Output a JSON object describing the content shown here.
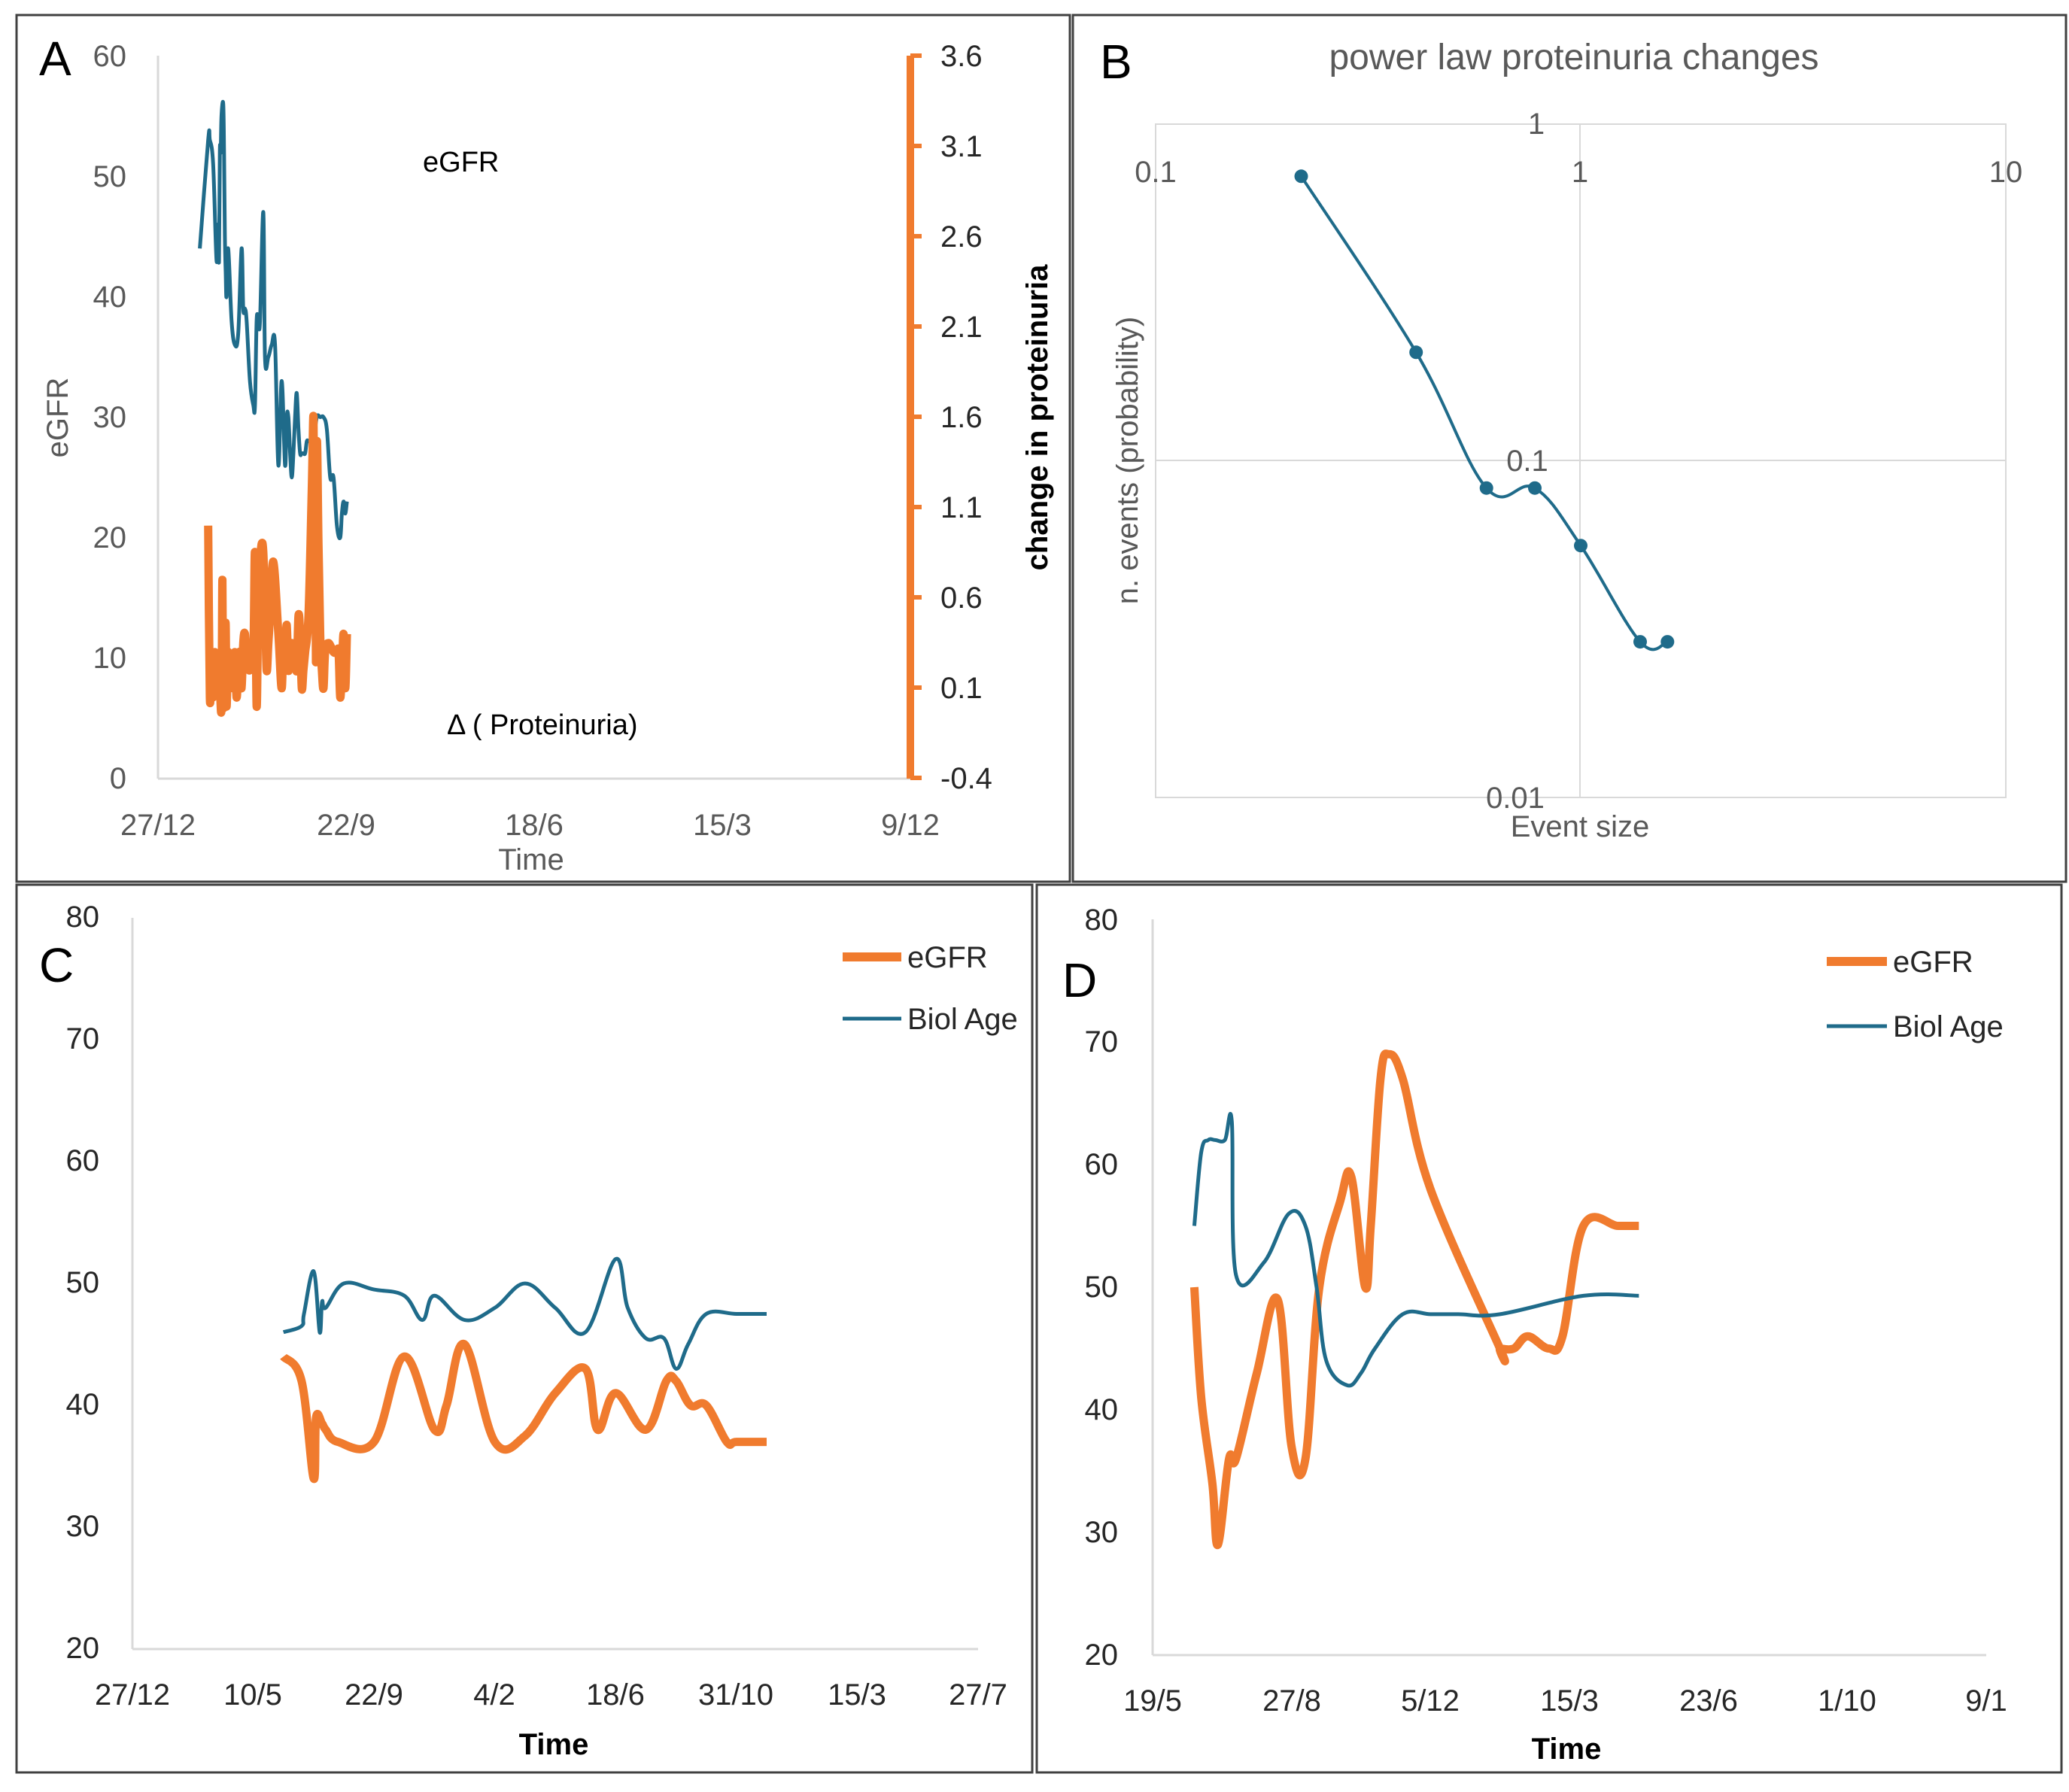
{
  "colors": {
    "blue": "#1f6b8a",
    "orange": "#f07b2e",
    "grid": "#d9d9d9",
    "text": "#595959"
  },
  "chart_data": [
    {
      "panel": "A",
      "type": "line",
      "title": "",
      "xlabel": "Time",
      "ylabel": "eGFR",
      "y2label": "change in proteinuria",
      "xticks": [
        "27/12",
        "22/9",
        "18/6",
        "15/3",
        "9/12"
      ],
      "ylim": [
        0,
        60
      ],
      "yticks": [
        0,
        10,
        20,
        30,
        40,
        50,
        60
      ],
      "y2lim": [
        -0.4,
        3.6
      ],
      "y2ticks": [
        "3.6",
        "3.1",
        "2.6",
        "2.1",
        "1.6",
        "1.1",
        "0.6",
        "0.1",
        "-0.4"
      ],
      "annotations": [
        "eGFR",
        "Δ ( Proteinuria)"
      ],
      "series": [
        {
          "name": "eGFR",
          "axis": "left",
          "x": [
            0.25,
            0.3,
            0.31,
            0.33,
            0.35,
            0.36,
            0.365,
            0.37,
            0.375,
            0.38,
            0.39,
            0.395,
            0.4,
            0.405,
            0.41,
            0.42,
            0.44,
            0.46,
            0.48,
            0.5,
            0.51,
            0.52,
            0.53,
            0.55,
            0.57,
            0.58,
            0.59,
            0.6,
            0.61,
            0.63,
            0.64,
            0.66,
            0.68,
            0.7,
            0.72,
            0.74,
            0.76,
            0.77,
            0.78,
            0.79,
            0.8,
            0.81,
            0.82,
            0.83,
            0.84,
            0.85,
            0.86,
            0.87,
            0.88,
            0.89,
            0.9,
            0.91,
            0.92,
            0.93,
            0.95,
            0.97,
            0.99,
            1.01,
            1.03,
            1.05,
            1.07,
            1.09,
            1.1,
            1.11,
            1.12,
            1.13
          ],
          "y": [
            44,
            53,
            53,
            51,
            43,
            46,
            43,
            52,
            52,
            55,
            56,
            52,
            45,
            42,
            40,
            44,
            38,
            36,
            37,
            44,
            39,
            39,
            38,
            33,
            31,
            31,
            38,
            38,
            38,
            47,
            35,
            35,
            36,
            36,
            26,
            33,
            26,
            30,
            30,
            27,
            25,
            27,
            30,
            32,
            29,
            27,
            27,
            27,
            27,
            28,
            28,
            28,
            28,
            28,
            30,
            30,
            30,
            29,
            25,
            25,
            21,
            20,
            22,
            23,
            22,
            23
          ]
        },
        {
          "name": "Δ ( Proteinuria)",
          "axis": "right",
          "x": [
            0.3,
            0.31,
            0.32,
            0.33,
            0.34,
            0.35,
            0.36,
            0.37,
            0.38,
            0.385,
            0.39,
            0.4,
            0.405,
            0.41,
            0.42,
            0.43,
            0.44,
            0.45,
            0.46,
            0.47,
            0.48,
            0.49,
            0.5,
            0.51,
            0.52,
            0.53,
            0.55,
            0.57,
            0.58,
            0.59,
            0.6,
            0.61,
            0.62,
            0.63,
            0.64,
            0.65,
            0.66,
            0.67,
            0.69,
            0.72,
            0.74,
            0.75,
            0.76,
            0.77,
            0.78,
            0.79,
            0.8,
            0.81,
            0.82,
            0.83,
            0.84,
            0.85,
            0.86,
            0.87,
            0.88,
            0.9,
            0.92,
            0.93,
            0.935,
            0.94,
            0.945,
            0.95,
            0.96,
            0.97,
            0.98,
            0.99,
            1.0,
            1.02,
            1.05,
            1.07,
            1.08,
            1.09,
            1.1,
            1.11,
            1.12,
            1.13
          ],
          "y": [
            1.0,
            0.05,
            0.25,
            0.05,
            0.3,
            0.1,
            0.2,
            0.1,
            0.0,
            0.7,
            0.0,
            0.3,
            0.45,
            0.0,
            0.3,
            0.1,
            0.25,
            0.1,
            0.3,
            0.05,
            0.2,
            0.3,
            0.1,
            0.35,
            0.4,
            0.25,
            0.2,
            0.3,
            0.85,
            0.0,
            0.6,
            0.8,
            0.9,
            0.85,
            0.55,
            0.2,
            0.35,
            0.5,
            0.8,
            0.4,
            0.1,
            0.4,
            0.3,
            0.45,
            0.2,
            0.3,
            0.35,
            0.3,
            0.3,
            0.2,
            0.5,
            0.4,
            0.1,
            0.2,
            0.3,
            0.5,
            1.2,
            1.6,
            0.9,
            1.0,
            0.25,
            1.45,
            0.9,
            0.4,
            0.2,
            0.1,
            0.3,
            0.35,
            0.3,
            0.3,
            0.3,
            0.05,
            0.2,
            0.4,
            0.1,
            0.4
          ]
        }
      ]
    },
    {
      "panel": "B",
      "type": "scatter",
      "title": "power law proteinuria changes",
      "xlabel": "Event size",
      "ylabel": "n. events (probability)",
      "xscale": "log",
      "yscale": "log",
      "xlim": [
        0.1,
        10
      ],
      "ylim": [
        0.01,
        1
      ],
      "xticks": [
        "0.1",
        "1",
        "10"
      ],
      "yticks": [
        "1",
        "0.1",
        "0.01"
      ],
      "series": [
        {
          "name": "proteinuria changes",
          "x": [
            0.22,
            0.41,
            0.6,
            0.78,
            1.0,
            1.38,
            1.6
          ],
          "y": [
            0.7,
            0.21,
            0.083,
            0.083,
            0.056,
            0.029,
            0.029
          ]
        }
      ]
    },
    {
      "panel": "C",
      "type": "line",
      "title": "",
      "xlabel": "Time",
      "ylabel": "",
      "xticks": [
        "27/12",
        "10/5",
        "22/9",
        "4/2",
        "18/6",
        "31/10",
        "15/3",
        "27/7"
      ],
      "ylim": [
        20,
        80
      ],
      "yticks": [
        20,
        30,
        40,
        50,
        60,
        70,
        80
      ],
      "legend": "top-right",
      "series": [
        {
          "name": "eGFR",
          "x": [
            1.25,
            1.4,
            1.5,
            1.52,
            1.57,
            1.6,
            1.7,
            2.0,
            2.25,
            2.5,
            2.6,
            2.75,
            3.0,
            3.25,
            3.5,
            3.75,
            3.85,
            4.0,
            4.25,
            4.42,
            4.5,
            4.62,
            4.75,
            4.92,
            5.0,
            5.25
          ],
          "y": [
            44,
            42,
            34,
            39,
            38.5,
            38,
            37,
            37,
            44,
            38,
            40,
            45,
            37,
            37.5,
            41,
            43,
            38,
            41,
            38,
            42,
            42,
            40,
            40,
            37,
            37,
            37
          ]
        },
        {
          "name": "Biol Age",
          "x": [
            1.25,
            1.4,
            1.42,
            1.5,
            1.55,
            1.57,
            1.6,
            1.75,
            2.0,
            2.25,
            2.4,
            2.5,
            2.75,
            3.0,
            3.25,
            3.5,
            3.75,
            4.0,
            4.1,
            4.25,
            4.4,
            4.5,
            4.6,
            4.75,
            5.0,
            5.25
          ],
          "y": [
            46,
            46.5,
            47.5,
            51,
            46,
            48.5,
            48,
            50,
            49.5,
            49,
            47,
            49,
            47,
            48,
            50,
            48,
            46,
            52,
            48,
            45.5,
            45.5,
            43,
            45,
            47.5,
            47.5,
            47.5
          ]
        }
      ]
    },
    {
      "panel": "D",
      "type": "line",
      "title": "",
      "xlabel": "Time",
      "ylabel": "",
      "xticks": [
        "19/5",
        "27/8",
        "5/12",
        "15/3",
        "23/6",
        "1/10",
        "9/1"
      ],
      "ylim": [
        20,
        80
      ],
      "yticks": [
        20,
        30,
        40,
        50,
        60,
        70,
        80
      ],
      "legend": "top-right",
      "series": [
        {
          "name": "eGFR",
          "x": [
            0.3,
            0.35,
            0.43,
            0.47,
            0.55,
            0.6,
            0.75,
            0.9,
            1.0,
            1.1,
            1.2,
            1.35,
            1.43,
            1.53,
            1.57,
            1.64,
            1.7,
            1.8,
            2.0,
            2.5,
            2.5,
            2.6,
            2.7,
            2.85,
            2.95,
            3.1,
            3.35,
            3.5
          ],
          "y": [
            50,
            41,
            34,
            29,
            36,
            36,
            43,
            49,
            37,
            36,
            50,
            57,
            59,
            50,
            55,
            67,
            69,
            67,
            58,
            45,
            45,
            45,
            46,
            45,
            46,
            55,
            55,
            55
          ]
        },
        {
          "name": "Biol Age",
          "x": [
            0.3,
            0.35,
            0.4,
            0.45,
            0.52,
            0.57,
            0.6,
            0.8,
            0.98,
            1.1,
            1.18,
            1.25,
            1.4,
            1.5,
            1.6,
            1.8,
            2.0,
            2.2,
            2.5,
            3.1,
            3.5
          ],
          "y": [
            55,
            61,
            62,
            62,
            62,
            63.5,
            51,
            52,
            56,
            55,
            50,
            44,
            42,
            43,
            45,
            47.8,
            47.8,
            47.8,
            47.8,
            49.3,
            49.3
          ]
        }
      ]
    }
  ],
  "panelA": {
    "letter": "A",
    "xlabel": "Time",
    "ylabel": "eGFR",
    "y2label": "change in proteinuria",
    "annot_egfr": "eGFR",
    "annot_prot": "Δ ( Proteinuria)",
    "yticks": [
      "60",
      "50",
      "40",
      "30",
      "20",
      "10",
      "0"
    ],
    "y2ticks": [
      "3.6",
      "3.1",
      "2.6",
      "2.1",
      "1.6",
      "1.1",
      "0.6",
      "0.1",
      "-0.4"
    ],
    "xticks": [
      "27/12",
      "22/9",
      "18/6",
      "15/3",
      "9/12"
    ]
  },
  "panelB": {
    "letter": "B",
    "title": "power law proteinuria changes",
    "xlabel": "Event size",
    "ylabel": "n. events (probability)",
    "xticks": [
      "0.1",
      "1",
      "10"
    ],
    "yticks": [
      "1",
      "0.1",
      "0.01"
    ]
  },
  "panelC": {
    "letter": "C",
    "xlabel": "Time",
    "yticks": [
      "80",
      "70",
      "60",
      "50",
      "40",
      "30",
      "20"
    ],
    "xticks": [
      "27/12",
      "10/5",
      "22/9",
      "4/2",
      "18/6",
      "31/10",
      "15/3",
      "27/7"
    ],
    "legend_egfr": "eGFR",
    "legend_bio": "Biol Age"
  },
  "panelD": {
    "letter": "D",
    "xlabel": "Time",
    "yticks": [
      "80",
      "70",
      "60",
      "50",
      "40",
      "30",
      "20"
    ],
    "xticks": [
      "19/5",
      "27/8",
      "5/12",
      "15/3",
      "23/6",
      "1/10",
      "9/1"
    ],
    "legend_egfr": "eGFR",
    "legend_bio": "Biol Age"
  }
}
